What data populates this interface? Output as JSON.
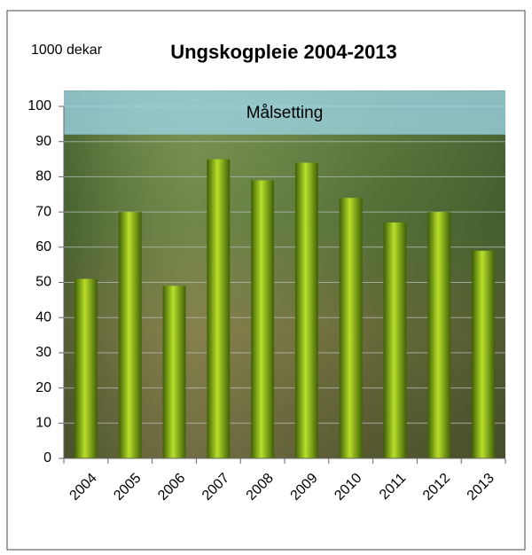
{
  "chart_data": {
    "type": "bar",
    "title": "Ungskogpleie 2004-2013",
    "y_label": "1000 dekar",
    "categories": [
      "2004",
      "2005",
      "2006",
      "2007",
      "2008",
      "2009",
      "2010",
      "2011",
      "2012",
      "2013"
    ],
    "values": [
      51,
      70,
      49,
      85,
      79,
      84,
      74,
      67,
      70,
      59
    ],
    "color": "#7aa512",
    "ylim": [
      0,
      100
    ],
    "yticks": [
      0,
      10,
      20,
      30,
      40,
      50,
      60,
      70,
      80,
      90,
      100
    ],
    "grid": true,
    "target_band": {
      "label": "Målsetting",
      "range": [
        92,
        104.5
      ],
      "color": "#9fd8ef"
    }
  }
}
